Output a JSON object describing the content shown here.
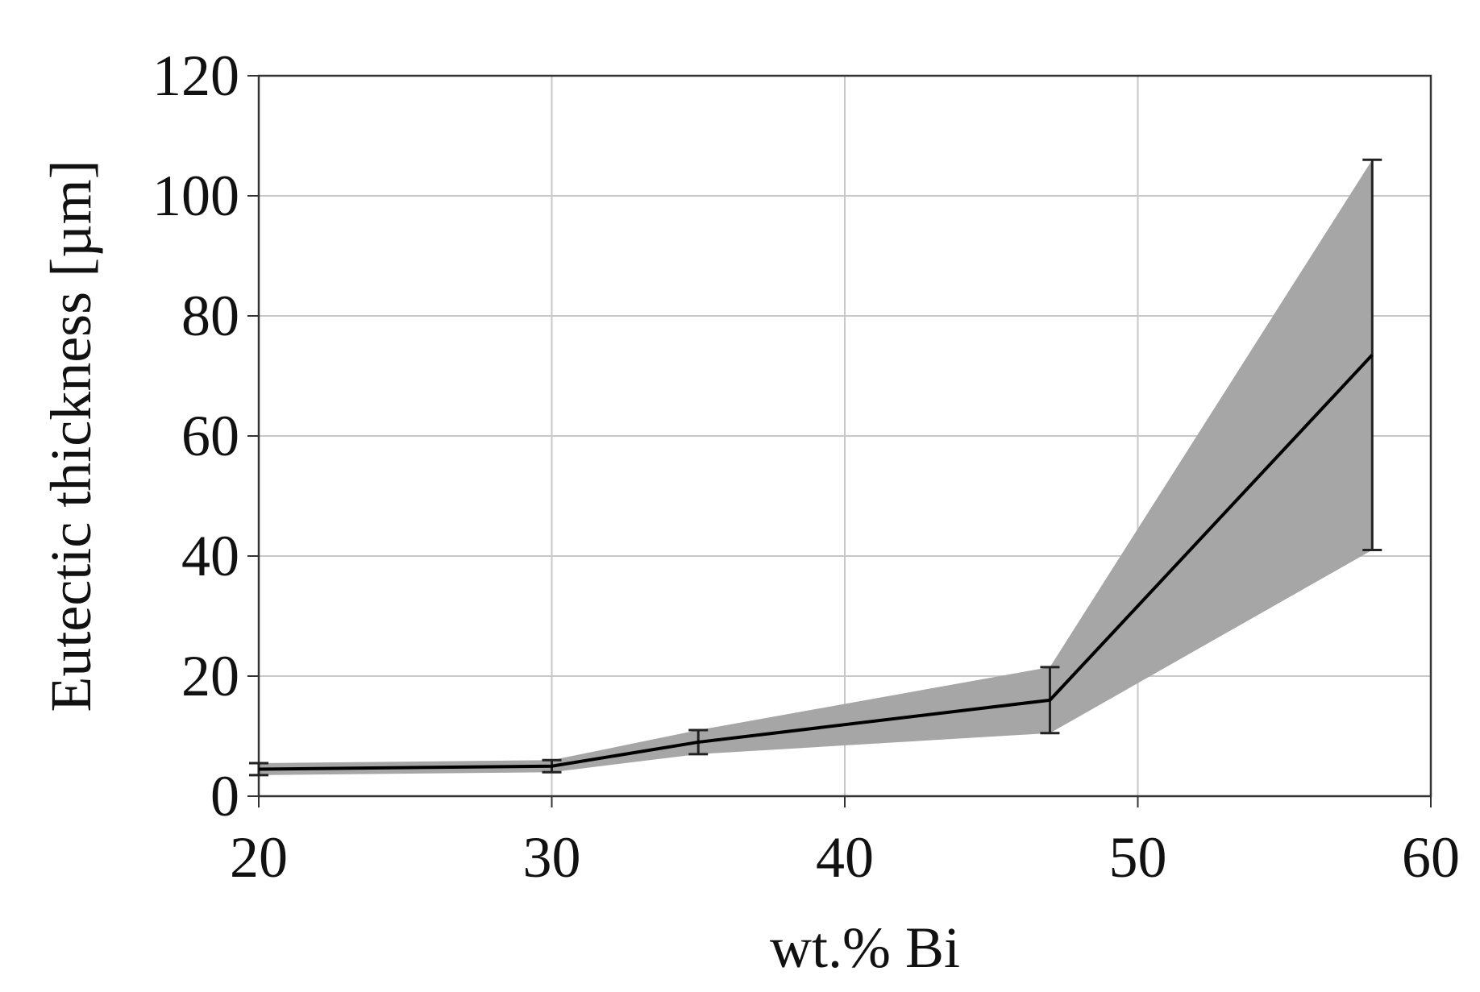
{
  "chart_data": {
    "type": "line",
    "xlabel": "wt.% Bi",
    "ylabel": "Eutectic thickness [µm]",
    "x": [
      20,
      30,
      35,
      47,
      58
    ],
    "values": [
      4.5,
      5,
      9,
      16,
      73.5
    ],
    "errors": [
      1,
      1,
      2,
      5.5,
      32.5
    ],
    "color": "#000000",
    "band_color": "#a6a6a6",
    "xlim": [
      20,
      60
    ],
    "ylim": [
      0,
      120
    ],
    "xticks": [
      20,
      30,
      40,
      50,
      60
    ],
    "yticks": [
      0,
      20,
      40,
      60,
      80,
      100,
      120
    ],
    "grid": true
  }
}
